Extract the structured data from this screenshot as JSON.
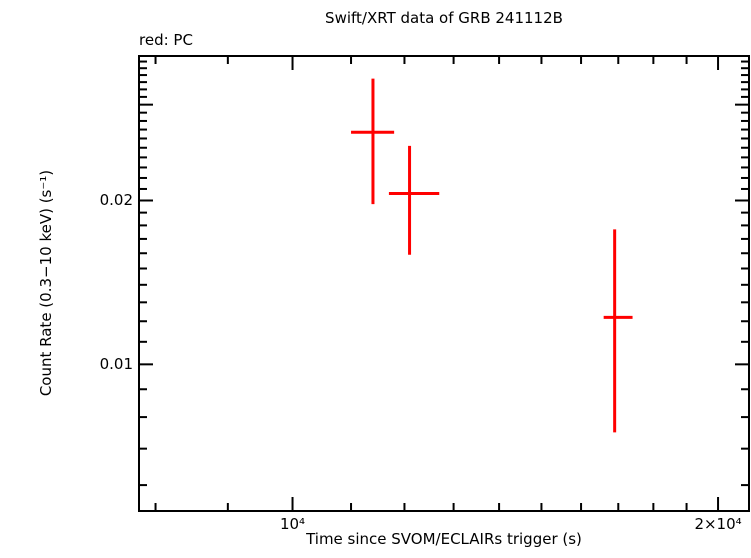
{
  "figure": {
    "background": "#ffffff",
    "text_color": "#000000"
  },
  "chart_data": {
    "type": "scatter",
    "title": "Swift/XRT data of GRB 241112B",
    "subtitle": "red: PC",
    "xlabel": "Time since SVOM/ECLAIRs trigger (s)",
    "ylabel": "Count Rate (0.3−10 keV) (s⁻¹)",
    "xscale": "log",
    "yscale": "log",
    "xlim": [
      7800,
      21000
    ],
    "ylim": [
      0.0054,
      0.0367
    ],
    "grid": false,
    "legend": "none",
    "x_ticks": {
      "major": [
        {
          "value": 10000,
          "label": "10⁴"
        },
        {
          "value": 20000,
          "label": "2×10⁴"
        }
      ],
      "minor": [
        8000,
        9000,
        11000,
        12000,
        13000,
        14000,
        15000,
        16000,
        17000,
        18000,
        19000
      ]
    },
    "y_ticks": {
      "major": [
        {
          "value": 0.01,
          "label": "0.01"
        },
        {
          "value": 0.02,
          "label": "0.02"
        },
        {
          "value": 0.03,
          "label": ""
        }
      ],
      "minor": [
        0.006,
        0.007,
        0.008,
        0.009,
        0.011,
        0.012,
        0.013,
        0.014,
        0.015,
        0.016,
        0.017,
        0.018,
        0.019,
        0.021,
        0.022,
        0.023,
        0.024,
        0.025,
        0.026,
        0.027,
        0.028,
        0.029,
        0.031,
        0.032,
        0.033,
        0.034,
        0.035,
        0.036
      ]
    },
    "series": [
      {
        "name": "PC",
        "color": "#ff0000",
        "marker": "cross-with-error-bars",
        "points": [
          {
            "t": 11400,
            "t_lo": 11000,
            "t_hi": 11800,
            "rate": 0.0267,
            "rate_lo": 0.0197,
            "rate_hi": 0.0335
          },
          {
            "t": 12100,
            "t_lo": 11700,
            "t_hi": 12700,
            "rate": 0.0206,
            "rate_lo": 0.0159,
            "rate_hi": 0.0252
          },
          {
            "t": 16900,
            "t_lo": 16600,
            "t_hi": 17400,
            "rate": 0.0122,
            "rate_lo": 0.0075,
            "rate_hi": 0.0177
          }
        ]
      }
    ],
    "axis_color": "#000000"
  }
}
